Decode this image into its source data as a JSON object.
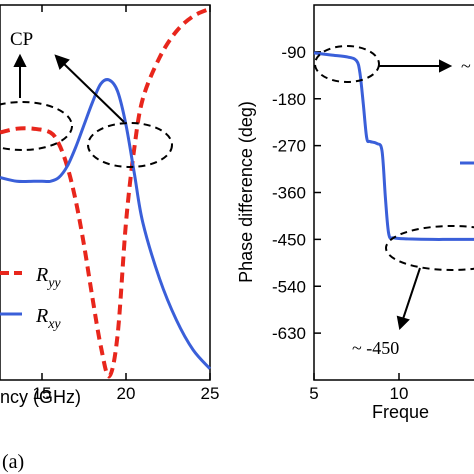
{
  "panel_a": {
    "label": "(a)",
    "annotation": "CP",
    "legend": {
      "ryy_main": "R",
      "ryy_sub": "yy",
      "rxy_main": "R",
      "rxy_sub": "xy"
    }
  },
  "panel_b": {
    "annotation": "~ -450",
    "annotation_top": "~"
  },
  "colors": {
    "ryy": "#e8261c",
    "rxy": "#3a5fd9",
    "axis": "#000000"
  },
  "chart_data": [
    {
      "type": "line",
      "xlabel": "ncy (GHz)",
      "ylabel": "",
      "x_ticks": [
        "15",
        "20",
        "25"
      ],
      "xlim": [
        12.5,
        25
      ],
      "ylim": [
        0,
        1
      ],
      "series": [
        {
          "name": "Ryy",
          "style": "dashed",
          "x": [
            12.5,
            13.5,
            14.5,
            15.5,
            16.0,
            16.5,
            17.0,
            17.5,
            18.0,
            18.5,
            19.0,
            19.5,
            20.0,
            20.5,
            21.0,
            22.0,
            23.0,
            24.0,
            25.0
          ],
          "y": [
            0.66,
            0.67,
            0.67,
            0.66,
            0.63,
            0.57,
            0.48,
            0.36,
            0.22,
            0.09,
            0.01,
            0.12,
            0.42,
            0.62,
            0.75,
            0.86,
            0.93,
            0.97,
            0.99
          ]
        },
        {
          "name": "Rxy",
          "style": "solid",
          "x": [
            12.5,
            13.5,
            14.5,
            15.0,
            15.5,
            16.0,
            16.5,
            17.0,
            17.5,
            18.0,
            18.5,
            19.0,
            19.5,
            20.0,
            20.5,
            21.0,
            22.0,
            23.0,
            24.0,
            25.0
          ],
          "y": [
            0.54,
            0.53,
            0.53,
            0.53,
            0.53,
            0.54,
            0.57,
            0.62,
            0.68,
            0.74,
            0.79,
            0.8,
            0.77,
            0.68,
            0.55,
            0.42,
            0.27,
            0.16,
            0.08,
            0.03
          ]
        }
      ]
    },
    {
      "type": "line",
      "xlabel": "Freque",
      "ylabel": "Phase difference (deg)",
      "x_ticks": [
        "5",
        "10"
      ],
      "y_ticks": [
        "-90",
        "-180",
        "-270",
        "-360",
        "-450",
        "-540",
        "-630"
      ],
      "xlim": [
        5,
        15
      ],
      "ylim": [
        -720,
        0
      ],
      "series": [
        {
          "name": "",
          "style": "solid",
          "x": [
            5,
            6,
            7,
            7.5,
            7.7,
            7.9,
            8.1,
            8.3,
            8.7,
            9.0,
            9.2,
            9.4,
            9.7,
            10.5,
            12,
            13,
            15
          ],
          "y": [
            -92,
            -96,
            -100,
            -107,
            -130,
            -190,
            -255,
            -262,
            -266,
            -280,
            -370,
            -440,
            -447,
            -449,
            -450,
            -450,
            -450
          ]
        }
      ]
    }
  ]
}
